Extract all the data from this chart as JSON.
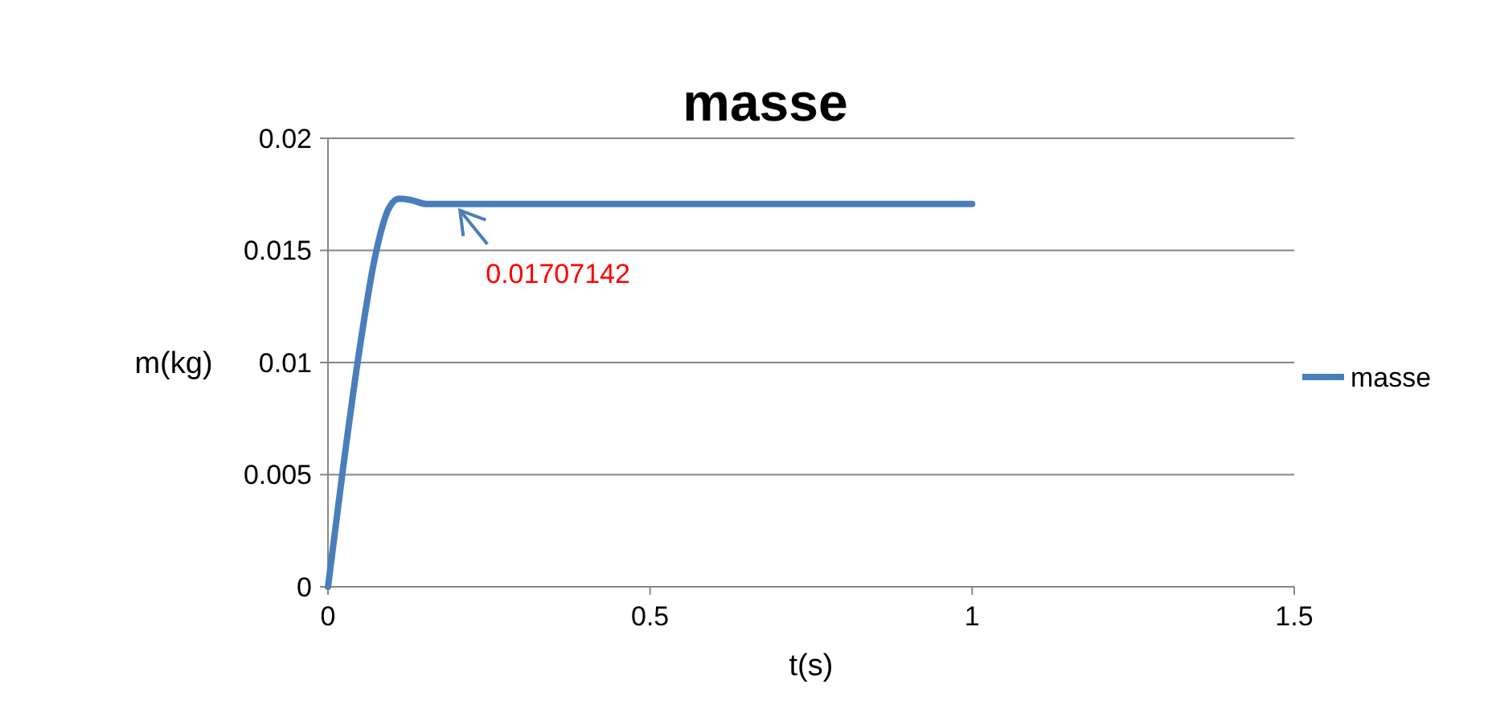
{
  "chart_data": {
    "type": "line",
    "title": "masse",
    "xlabel": "t(s)",
    "ylabel": "m(kg)",
    "x": [
      0,
      0.023,
      0.048,
      0.073,
      0.094,
      0.11,
      0.128,
      0.153,
      0.2,
      0.5,
      1
    ],
    "series": [
      {
        "name": "masse",
        "color": "#4a7ebb",
        "values": [
          0,
          0.0052,
          0.0104,
          0.0147,
          0.01685,
          0.0173,
          0.01725,
          0.01707,
          0.01707,
          0.01707,
          0.01707
        ]
      }
    ],
    "xlim": [
      0,
      1.5
    ],
    "xticks": [
      0,
      0.5,
      1,
      1.5
    ],
    "ylim": [
      0,
      0.02
    ],
    "yticks": [
      0,
      0.005,
      0.01,
      0.015,
      0.02
    ],
    "grid": "y",
    "legend": "right",
    "marker": "none",
    "line_style": "solid",
    "annotations": [
      {
        "text": "0.01707142",
        "x": 0.2,
        "y": 0.01707142
      }
    ]
  }
}
